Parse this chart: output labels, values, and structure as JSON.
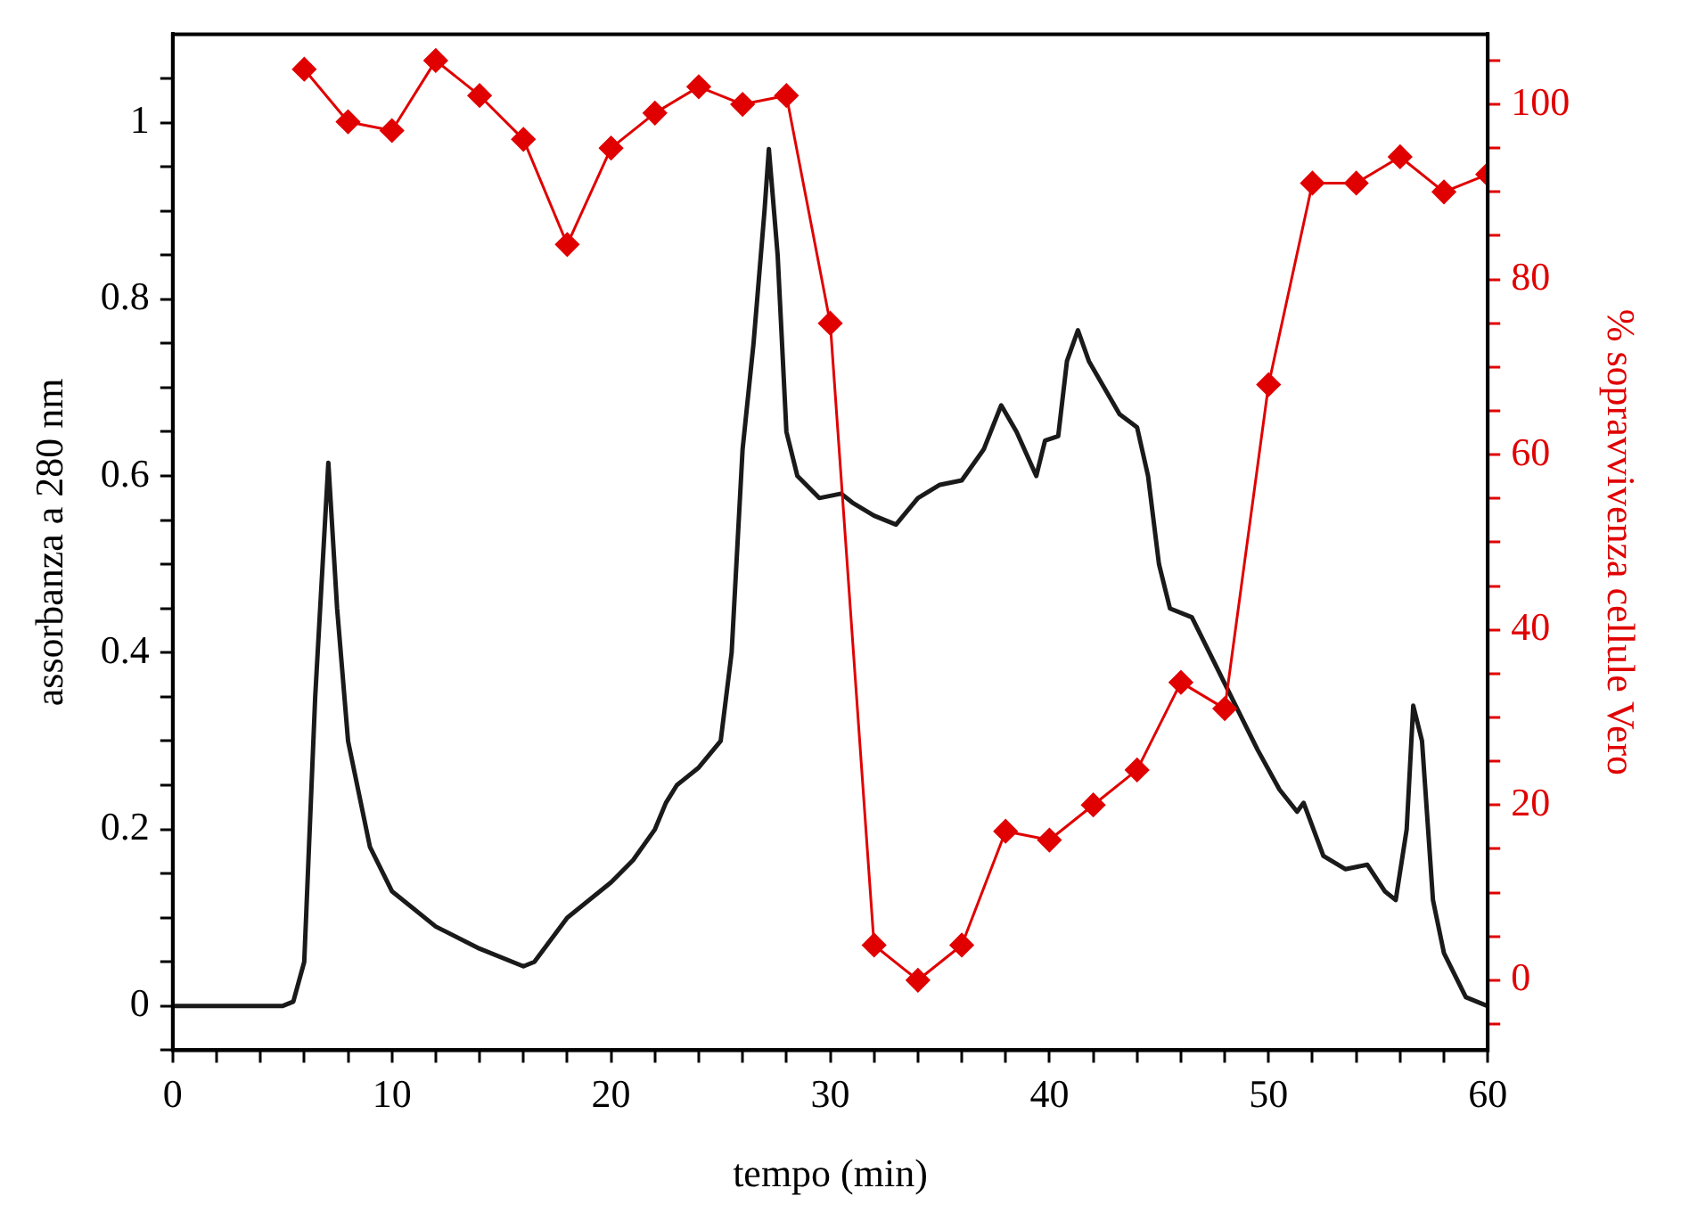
{
  "chart_data": {
    "type": "line",
    "xlabel": "tempo (min)",
    "ylabel": "assorbanza a 280 nm",
    "y2label": "% sopravvivenza cellule Vero",
    "xlim": [
      0,
      60
    ],
    "xticks": [
      0,
      {
        "value": 2,
        "label": null
      },
      {
        "value": 4,
        "label": null
      },
      {
        "value": 6,
        "label": null
      },
      {
        "value": 8,
        "label": null
      },
      10,
      {
        "value": 12,
        "label": null
      },
      {
        "value": 14,
        "label": null
      },
      {
        "value": 16,
        "label": null
      },
      {
        "value": 18,
        "label": null
      },
      20,
      {
        "value": 22,
        "label": null
      },
      {
        "value": 24,
        "label": null
      },
      {
        "value": 26,
        "label": null
      },
      {
        "value": 28,
        "label": null
      },
      30,
      {
        "value": 32,
        "label": null
      },
      {
        "value": 34,
        "label": null
      },
      {
        "value": 36,
        "label": null
      },
      {
        "value": 38,
        "label": null
      },
      40,
      {
        "value": 42,
        "label": null
      },
      {
        "value": 44,
        "label": null
      },
      {
        "value": 46,
        "label": null
      },
      {
        "value": 48,
        "label": null
      },
      50,
      {
        "value": 52,
        "label": null
      },
      {
        "value": 54,
        "label": null
      },
      {
        "value": 56,
        "label": null
      },
      {
        "value": 58,
        "label": null
      },
      60
    ],
    "ylim": [
      -0.05,
      1.1
    ],
    "yticks": [
      {
        "value": -0.05,
        "label": null
      },
      0,
      {
        "value": 0.05,
        "label": null
      },
      {
        "value": 0.1,
        "label": null
      },
      {
        "value": 0.15,
        "label": null
      },
      0.2,
      {
        "value": 0.25,
        "label": null
      },
      {
        "value": 0.3,
        "label": null
      },
      {
        "value": 0.35,
        "label": null
      },
      0.4,
      {
        "value": 0.45,
        "label": null
      },
      {
        "value": 0.5,
        "label": null
      },
      {
        "value": 0.55,
        "label": null
      },
      0.6,
      {
        "value": 0.65,
        "label": null
      },
      {
        "value": 0.7,
        "label": null
      },
      {
        "value": 0.75,
        "label": null
      },
      0.8,
      {
        "value": 0.85,
        "label": null
      },
      {
        "value": 0.9,
        "label": null
      },
      {
        "value": 0.95,
        "label": null
      },
      1,
      {
        "value": 1.05,
        "label": null
      }
    ],
    "y2lim": [
      -8,
      108
    ],
    "y2ticks": [
      {
        "value": -5,
        "label": null
      },
      0,
      {
        "value": 5,
        "label": null
      },
      {
        "value": 10,
        "label": null
      },
      {
        "value": 15,
        "label": null
      },
      20,
      {
        "value": 25,
        "label": null
      },
      {
        "value": 30,
        "label": null
      },
      {
        "value": 35,
        "label": null
      },
      40,
      {
        "value": 45,
        "label": null
      },
      {
        "value": 50,
        "label": null
      },
      {
        "value": 55,
        "label": null
      },
      60,
      {
        "value": 65,
        "label": null
      },
      {
        "value": 70,
        "label": null
      },
      {
        "value": 75,
        "label": null
      },
      80,
      {
        "value": 85,
        "label": null
      },
      {
        "value": 90,
        "label": null
      },
      {
        "value": 95,
        "label": null
      },
      100,
      {
        "value": 105,
        "label": null
      }
    ],
    "grid": false,
    "legend": false,
    "series": [
      {
        "color": "#1a1a1a",
        "marker": "none",
        "x": [
          0,
          5,
          5.5,
          6,
          6.5,
          7.1,
          7.5,
          8,
          9,
          10,
          12,
          14,
          16,
          16.5,
          18,
          20,
          21,
          22,
          22.5,
          23,
          24,
          25,
          25.5,
          26,
          26.5,
          27,
          27.2,
          27.6,
          28,
          28.5,
          29.5,
          30.5,
          31,
          32,
          33,
          34,
          35,
          36,
          37,
          37.8,
          38.5,
          39.4,
          39.8,
          40.4,
          40.8,
          41.3,
          41.8,
          42.5,
          43.2,
          44,
          44.5,
          45,
          45.5,
          46.5,
          47.5,
          48.5,
          49.5,
          50.5,
          51.3,
          51.6,
          52.5,
          53.5,
          54.5,
          55.3,
          55.8,
          56.3,
          56.6,
          57,
          57.5,
          58,
          59,
          60
        ],
        "values": [
          0,
          0,
          0.005,
          0.05,
          0.35,
          0.615,
          0.45,
          0.3,
          0.18,
          0.13,
          0.09,
          0.065,
          0.045,
          0.05,
          0.1,
          0.14,
          0.165,
          0.2,
          0.23,
          0.25,
          0.27,
          0.3,
          0.4,
          0.63,
          0.75,
          0.9,
          0.97,
          0.85,
          0.65,
          0.6,
          0.575,
          0.58,
          0.57,
          0.555,
          0.545,
          0.575,
          0.59,
          0.595,
          0.63,
          0.68,
          0.65,
          0.6,
          0.64,
          0.645,
          0.73,
          0.765,
          0.73,
          0.7,
          0.67,
          0.655,
          0.6,
          0.5,
          0.45,
          0.44,
          0.39,
          0.34,
          0.29,
          0.245,
          0.22,
          0.23,
          0.17,
          0.155,
          0.16,
          0.13,
          0.12,
          0.2,
          0.34,
          0.3,
          0.12,
          0.06,
          0.01,
          0
        ]
      },
      {
        "color": "#e00000",
        "marker": "diamond",
        "axis": "y2",
        "x": [
          6,
          8,
          10,
          12,
          14,
          16,
          18,
          20,
          22,
          24,
          26,
          28,
          30,
          32,
          34,
          36,
          38,
          40,
          42,
          44,
          46,
          48,
          50,
          52,
          54,
          56,
          58,
          60
        ],
        "values": [
          104,
          98,
          97,
          105,
          101,
          96,
          84,
          95,
          99,
          102,
          100,
          101,
          75,
          4,
          0,
          4,
          17,
          16,
          20,
          24,
          34,
          31,
          68,
          91,
          91,
          94,
          90,
          92
        ]
      }
    ]
  }
}
